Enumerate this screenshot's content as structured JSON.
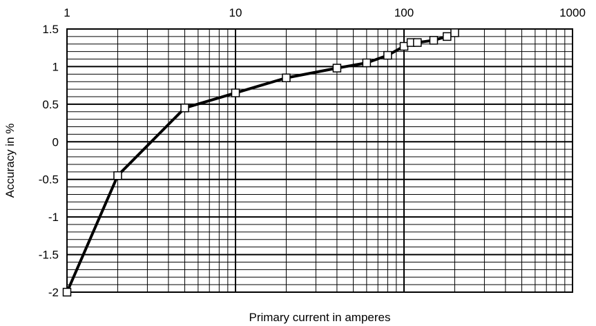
{
  "chart_data": {
    "type": "line",
    "title": "",
    "xlabel": "Primary current in amperes",
    "ylabel": "Accuracy in %",
    "x_scale": "log",
    "xlim": [
      1,
      1000
    ],
    "ylim": [
      -2,
      1.5
    ],
    "x_ticks": [
      1,
      10,
      100,
      1000
    ],
    "x_tick_labels": [
      "1",
      "10",
      "100",
      "1000"
    ],
    "y_ticks": [
      -2,
      -1.5,
      -1,
      -0.5,
      0,
      0.5,
      1,
      1.5
    ],
    "y_tick_labels": [
      "-2",
      "-1.5",
      "-1",
      "-0.5",
      "0",
      "0.5",
      "1",
      "1.5"
    ],
    "x_tick_position": "top",
    "grid": true,
    "legend": "none",
    "line_color": "#000000",
    "marker": "open-square",
    "series": [
      {
        "x": [
          1,
          2,
          5,
          10,
          20,
          40,
          60,
          80,
          100,
          110,
          120,
          150,
          180,
          200
        ],
        "y": [
          -2,
          -0.45,
          0.45,
          0.65,
          0.85,
          0.98,
          1.05,
          1.15,
          1.27,
          1.32,
          1.32,
          1.35,
          1.4,
          1.45
        ]
      }
    ]
  }
}
